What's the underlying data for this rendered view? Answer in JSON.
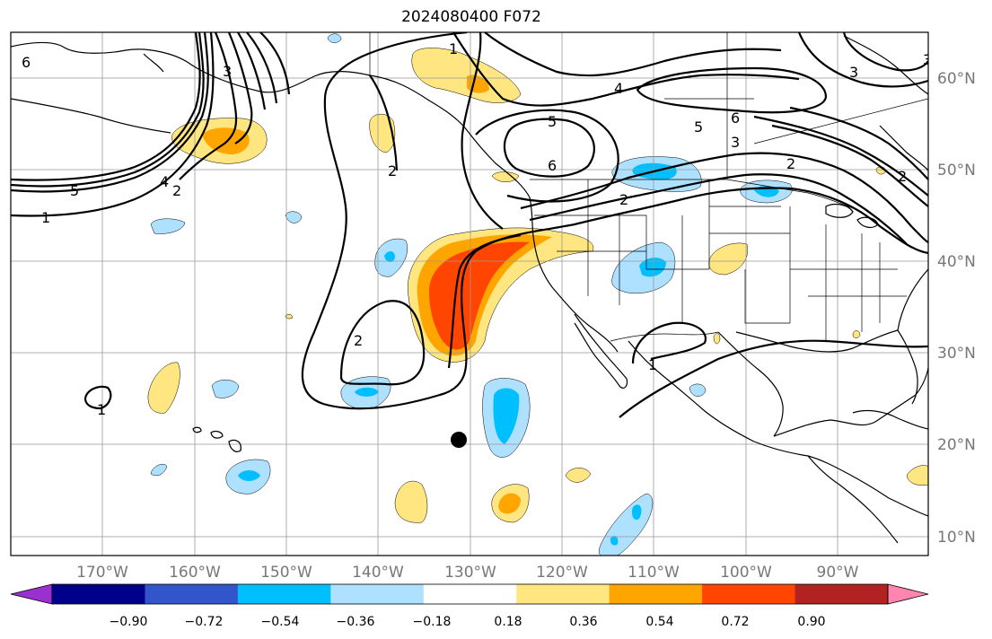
{
  "map": {
    "title": "2024080400 F072",
    "lon_labels": [
      "170°W",
      "160°W",
      "150°W",
      "140°W",
      "130°W",
      "120°W",
      "110°W",
      "100°W",
      "90°W"
    ],
    "lat_labels": [
      "60°N",
      "50°N",
      "40°N",
      "30°N",
      "20°N",
      "10°N"
    ],
    "contour_labels": [
      "6",
      "5",
      "4",
      "3",
      "2",
      "1",
      "1",
      "2",
      "3",
      "4",
      "5",
      "6",
      "6",
      "5",
      "2",
      "2",
      "1",
      "2",
      "1",
      "2",
      "3",
      "3"
    ]
  },
  "colorbar": {
    "ticks": [
      "−0.90",
      "−0.72",
      "−0.54",
      "−0.36",
      "−0.18",
      "0.18",
      "0.36",
      "0.54",
      "0.72",
      "0.90"
    ],
    "colors": [
      "#9b30d0",
      "#00008b",
      "#3355cc",
      "#00bfff",
      "#aee0ff",
      "#ffffff",
      "#ffe680",
      "#ffa500",
      "#ff4500",
      "#b22222",
      "#ff85b0"
    ]
  }
}
